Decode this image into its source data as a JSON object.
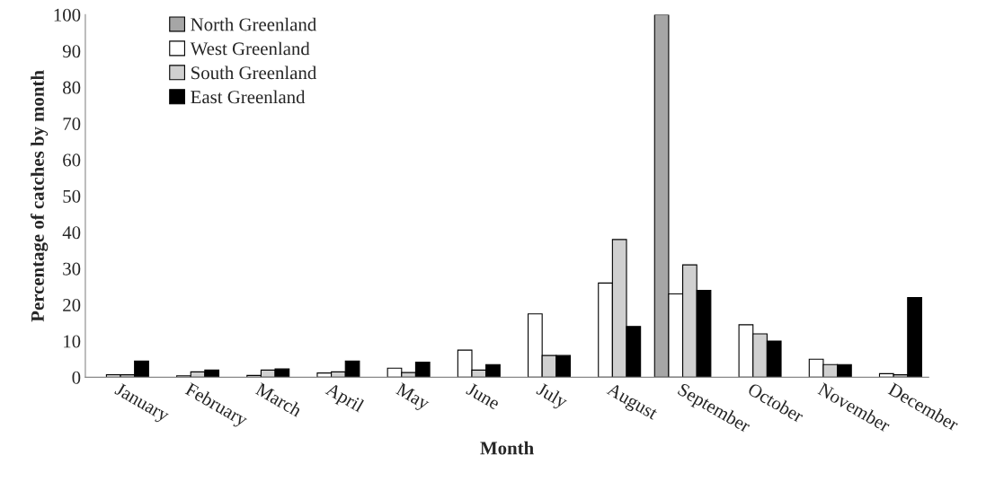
{
  "chart_data": {
    "type": "bar",
    "xlabel": "Month",
    "ylabel": "Percentage of catches by month",
    "categories": [
      "January",
      "February",
      "March",
      "April",
      "May",
      "June",
      "July",
      "August",
      "September",
      "October",
      "November",
      "December"
    ],
    "series": [
      {
        "name": "North Greenland",
        "color": "#a6a6a6",
        "values": [
          null,
          null,
          null,
          null,
          null,
          null,
          null,
          null,
          100,
          null,
          null,
          null
        ]
      },
      {
        "name": "West Greenland",
        "color": "#ffffff",
        "values": [
          0.7,
          0.4,
          0.5,
          1.2,
          2.5,
          7.5,
          17.5,
          26,
          23,
          14.5,
          5,
          1
        ]
      },
      {
        "name": "South Greenland",
        "color": "#d0d0d0",
        "values": [
          0.7,
          1.5,
          2,
          1.5,
          1.3,
          2,
          6,
          38,
          31,
          12,
          3.5,
          0.7
        ]
      },
      {
        "name": "East Greenland",
        "color": "#000000",
        "values": [
          4.5,
          2,
          2.3,
          4.5,
          4.2,
          3.5,
          6,
          14,
          24,
          10,
          3.5,
          22
        ]
      }
    ],
    "ylim": [
      0,
      100
    ],
    "yticks": [
      0,
      10,
      20,
      30,
      40,
      50,
      60,
      70,
      80,
      90,
      100
    ],
    "grid": false,
    "legend": "top left"
  }
}
